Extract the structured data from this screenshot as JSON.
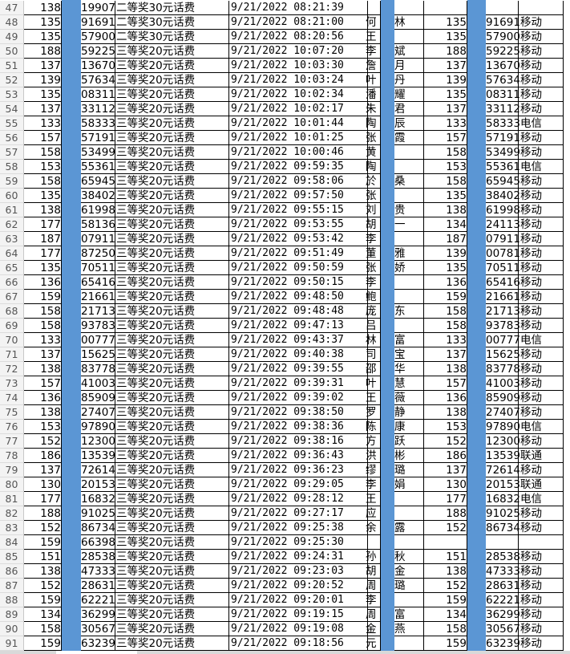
{
  "colors": {
    "redaction_bar": "#5b96d4",
    "grid_line": "#000000",
    "row_header_bg": "#f3f3f3"
  },
  "rows": [
    [
      "47",
      "138",
      "19907",
      "二等奖30元话费",
      "9/21/2022 08:21:39",
      "",
      "",
      "",
      "",
      ""
    ],
    [
      "48",
      "135",
      "91691",
      "二等奖30元话费",
      "9/21/2022 08:21:00",
      "何",
      "林",
      "135",
      "91691",
      "移动"
    ],
    [
      "49",
      "135",
      "57900",
      "二等奖30元话费",
      "9/21/2022 08:20:56",
      "王",
      "",
      "135",
      "57900",
      "移动"
    ],
    [
      "50",
      "188",
      "59225",
      "三等奖20元话费",
      "9/21/2022 10:07:20",
      "李",
      "斌",
      "188",
      "59225",
      "移动"
    ],
    [
      "51",
      "137",
      "13670",
      "三等奖20元话费",
      "9/21/2022 10:03:30",
      "詹",
      "月",
      "137",
      "13670",
      "移动"
    ],
    [
      "52",
      "139",
      "57634",
      "三等奖20元话费",
      "9/21/2022 10:03:24",
      "叶",
      "丹",
      "139",
      "57634",
      "移动"
    ],
    [
      "53",
      "135",
      "08311",
      "三等奖20元话费",
      "9/21/2022 10:02:34",
      "潘",
      "耀",
      "135",
      "08311",
      "移动"
    ],
    [
      "54",
      "137",
      "33112",
      "三等奖20元话费",
      "9/21/2022 10:02:17",
      "朱",
      "君",
      "137",
      "33112",
      "移动"
    ],
    [
      "55",
      "133",
      "58333",
      "三等奖20元话费",
      "9/21/2022 10:01:44",
      "陶",
      "辰",
      "133",
      "58333",
      "电信"
    ],
    [
      "56",
      "157",
      "57191",
      "三等奖20元话费",
      "9/21/2022 10:01:25",
      "张",
      "霞",
      "157",
      "57191",
      "移动"
    ],
    [
      "57",
      "158",
      "53499",
      "三等奖20元话费",
      "9/21/2022 10:00:46",
      "黄",
      "",
      "158",
      "53499",
      "移动"
    ],
    [
      "58",
      "153",
      "55361",
      "三等奖20元话费",
      "9/21/2022 09:59:35",
      "陶",
      "",
      "153",
      "55361",
      "电信"
    ],
    [
      "59",
      "158",
      "65945",
      "三等奖20元话费",
      "9/21/2022 09:58:06",
      "於",
      "桑",
      "158",
      "65945",
      "移动"
    ],
    [
      "60",
      "135",
      "38402",
      "三等奖20元话费",
      "9/21/2022 09:57:50",
      "张",
      "",
      "135",
      "38402",
      "移动"
    ],
    [
      "61",
      "138",
      "61998",
      "三等奖20元话费",
      "9/21/2022 09:55:15",
      "刘",
      "贵",
      "138",
      "61998",
      "移动"
    ],
    [
      "62",
      "177",
      "58136",
      "三等奖20元话费",
      "9/21/2022 09:53:55",
      "胡",
      "一",
      "134",
      "24113",
      "移动"
    ],
    [
      "63",
      "187",
      "07911",
      "三等奖20元话费",
      "9/21/2022 09:53:42",
      "李",
      "",
      "187",
      "07911",
      "移动"
    ],
    [
      "64",
      "177",
      "87250",
      "三等奖20元话费",
      "9/21/2022 09:51:49",
      "董",
      "雅",
      "139",
      "00781",
      "移动"
    ],
    [
      "65",
      "135",
      "70511",
      "三等奖20元话费",
      "9/21/2022 09:50:59",
      "张",
      "娇",
      "135",
      "70511",
      "移动"
    ],
    [
      "66",
      "136",
      "65416",
      "三等奖20元话费",
      "9/21/2022 09:50:15",
      "李",
      "",
      "136",
      "65416",
      "移动"
    ],
    [
      "67",
      "159",
      "21661",
      "三等奖20元话费",
      "9/21/2022 09:48:50",
      "鲍",
      "",
      "159",
      "21661",
      "移动"
    ],
    [
      "68",
      "158",
      "21713",
      "三等奖20元话费",
      "9/21/2022 09:48:48",
      "庞",
      "东",
      "158",
      "21713",
      "移动"
    ],
    [
      "69",
      "158",
      "93783",
      "三等奖20元话费",
      "9/21/2022 09:47:13",
      "吕",
      "",
      "158",
      "93783",
      "移动"
    ],
    [
      "70",
      "133",
      "00777",
      "三等奖20元话费",
      "9/21/2022 09:43:37",
      "林",
      "富",
      "133",
      "00777",
      "电信"
    ],
    [
      "71",
      "137",
      "15625",
      "三等奖20元话费",
      "9/21/2022 09:40:38",
      "司",
      "宝",
      "137",
      "15625",
      "移动"
    ],
    [
      "72",
      "138",
      "83778",
      "三等奖20元话费",
      "9/21/2022 09:39:55",
      "邵",
      "华",
      "138",
      "83778",
      "移动"
    ],
    [
      "73",
      "157",
      "41003",
      "三等奖20元话费",
      "9/21/2022 09:39:31",
      "叶",
      "慧",
      "157",
      "41003",
      "移动"
    ],
    [
      "74",
      "136",
      "85909",
      "三等奖20元话费",
      "9/21/2022 09:39:02",
      "王",
      "薇",
      "136",
      "85909",
      "移动"
    ],
    [
      "75",
      "138",
      "27407",
      "三等奖20元话费",
      "9/21/2022 09:38:50",
      "罗",
      "静",
      "138",
      "27407",
      "移动"
    ],
    [
      "76",
      "153",
      "97890",
      "三等奖20元话费",
      "9/21/2022 09:38:36",
      "陈",
      "康",
      "153",
      "97890",
      "电信"
    ],
    [
      "77",
      "152",
      "12300",
      "三等奖20元话费",
      "9/21/2022 09:38:16",
      "方",
      "跃",
      "152",
      "12300",
      "移动"
    ],
    [
      "78",
      "186",
      "13539",
      "三等奖20元话费",
      "9/21/2022 09:36:43",
      "洪",
      "彬",
      "186",
      "13539",
      "联通"
    ],
    [
      "79",
      "137",
      "72614",
      "三等奖20元话费",
      "9/21/2022 09:36:23",
      "缪",
      "璐",
      "137",
      "72614",
      "移动"
    ],
    [
      "80",
      "130",
      "20153",
      "三等奖20元话费",
      "9/21/2022 09:29:05",
      "李",
      "娟",
      "130",
      "20153",
      "联通"
    ],
    [
      "81",
      "177",
      "16832",
      "三等奖20元话费",
      "9/21/2022 09:28:12",
      "王",
      "",
      "177",
      "16832",
      "电信"
    ],
    [
      "82",
      "188",
      "91025",
      "三等奖20元话费",
      "9/21/2022 09:27:17",
      "应",
      "",
      "188",
      "91025",
      "移动"
    ],
    [
      "83",
      "152",
      "86734",
      "三等奖20元话费",
      "9/21/2022 09:25:38",
      "余",
      "露",
      "152",
      "86734",
      "移动"
    ],
    [
      "84",
      "159",
      "66398",
      "三等奖20元话费",
      "9/21/2022 09:25:30",
      "",
      "",
      "",
      "",
      ""
    ],
    [
      "85",
      "151",
      "28538",
      "三等奖20元话费",
      "9/21/2022 09:24:31",
      "孙",
      "秋",
      "151",
      "28538",
      "移动"
    ],
    [
      "86",
      "138",
      "47333",
      "三等奖20元话费",
      "9/21/2022 09:23:03",
      "胡",
      "金",
      "138",
      "47333",
      "移动"
    ],
    [
      "87",
      "152",
      "28631",
      "三等奖20元话费",
      "9/21/2022 09:20:52",
      "周",
      "璐",
      "152",
      "28631",
      "移动"
    ],
    [
      "88",
      "159",
      "62221",
      "三等奖20元话费",
      "9/21/2022 09:20:01",
      "李",
      "",
      "159",
      "62221",
      "移动"
    ],
    [
      "89",
      "134",
      "36299",
      "三等奖20元话费",
      "9/21/2022 09:19:15",
      "周",
      "富",
      "134",
      "36299",
      "移动"
    ],
    [
      "90",
      "158",
      "30567",
      "三等奖20元话费",
      "9/21/2022 09:19:08",
      "金",
      "燕",
      "158",
      "30567",
      "移动"
    ],
    [
      "91",
      "159",
      "63239",
      "三等奖20元话费",
      "9/21/2022 09:18:56",
      "元",
      "",
      "159",
      "63239",
      "移动"
    ]
  ]
}
